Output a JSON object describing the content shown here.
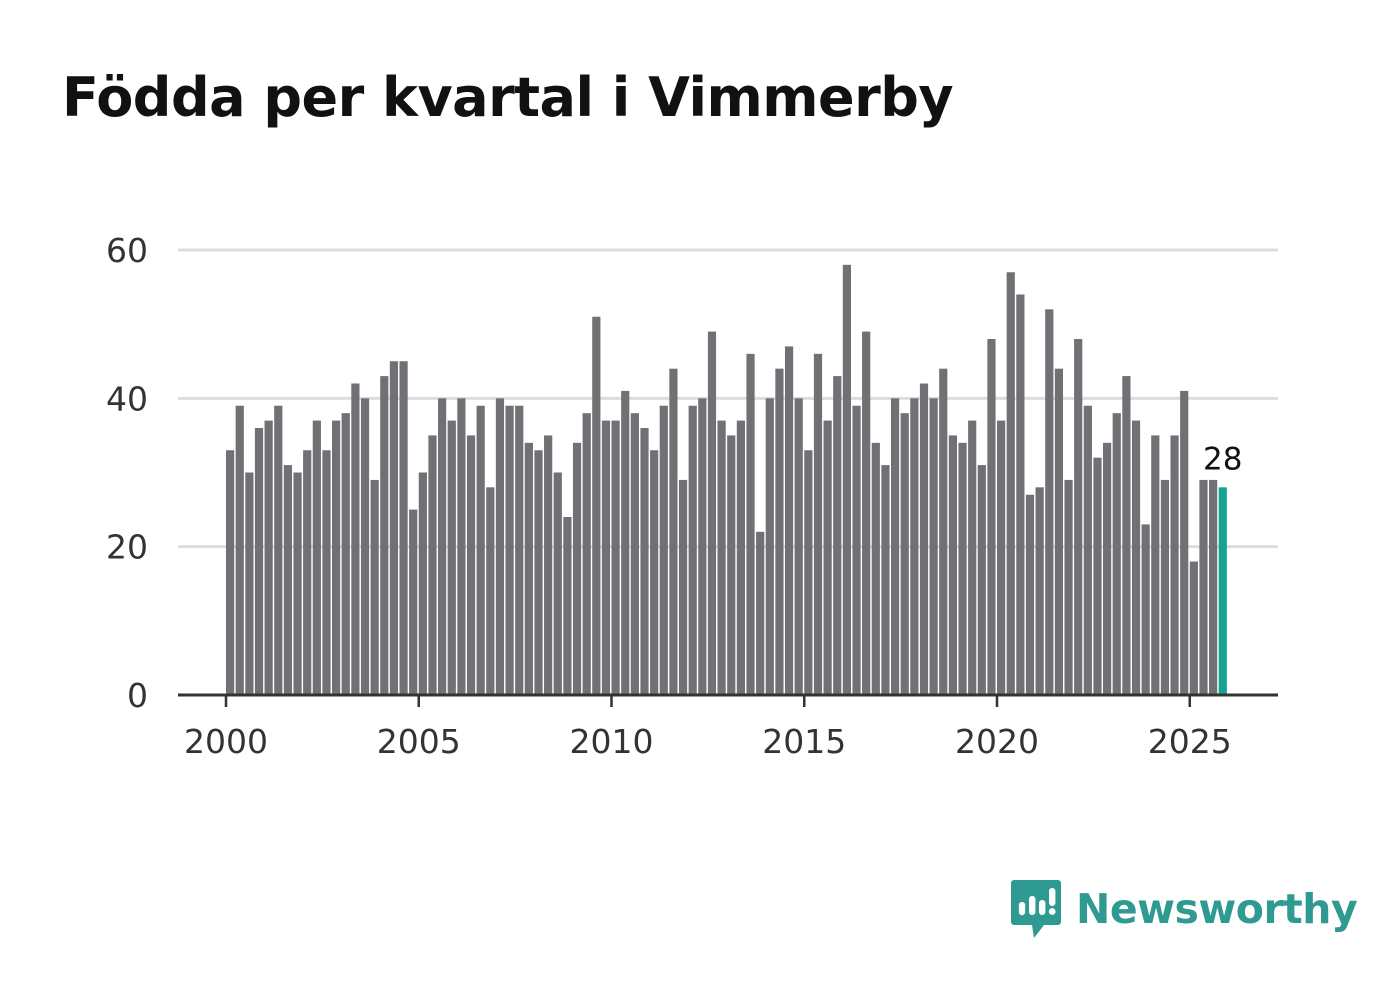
{
  "page": {
    "title": "Födda per kvartal i Vimmerby"
  },
  "brand": {
    "name": "Newsworthy",
    "icon": "newsworthy-logo-icon",
    "color": "#2f9a91"
  },
  "colors": {
    "bar": "#717075",
    "highlight": "#16a394",
    "grid": "#dddddd",
    "axis": "#333333"
  },
  "chart_data": {
    "type": "bar",
    "title": "Födda per kvartal i Vimmerby",
    "xlabel": "",
    "ylabel": "",
    "start_year": 2000,
    "start_quarter": 1,
    "ylim": [
      0,
      60
    ],
    "yticks": [
      0,
      20,
      40,
      60
    ],
    "xticks": [
      2000,
      2005,
      2010,
      2015,
      2020,
      2025
    ],
    "xlim": [
      1999.75,
      2027.25
    ],
    "grid": true,
    "values": [
      33,
      39,
      30,
      36,
      37,
      39,
      31,
      30,
      33,
      37,
      33,
      37,
      38,
      42,
      40,
      29,
      43,
      45,
      45,
      25,
      30,
      35,
      40,
      37,
      40,
      35,
      39,
      28,
      40,
      39,
      39,
      34,
      33,
      35,
      30,
      24,
      34,
      38,
      51,
      37,
      37,
      41,
      38,
      36,
      33,
      39,
      44,
      29,
      39,
      40,
      49,
      37,
      35,
      37,
      46,
      22,
      40,
      44,
      47,
      40,
      33,
      46,
      37,
      43,
      58,
      39,
      49,
      34,
      31,
      40,
      38,
      40,
      42,
      40,
      44,
      35,
      34,
      37,
      31,
      48,
      37,
      57,
      54,
      27,
      28,
      52,
      44,
      29,
      48,
      39,
      32,
      34,
      38,
      43,
      37,
      23,
      35,
      29,
      35,
      41,
      18,
      29,
      29,
      28
    ],
    "highlight_last": true,
    "annotations": [
      {
        "label": "28"
      }
    ]
  }
}
